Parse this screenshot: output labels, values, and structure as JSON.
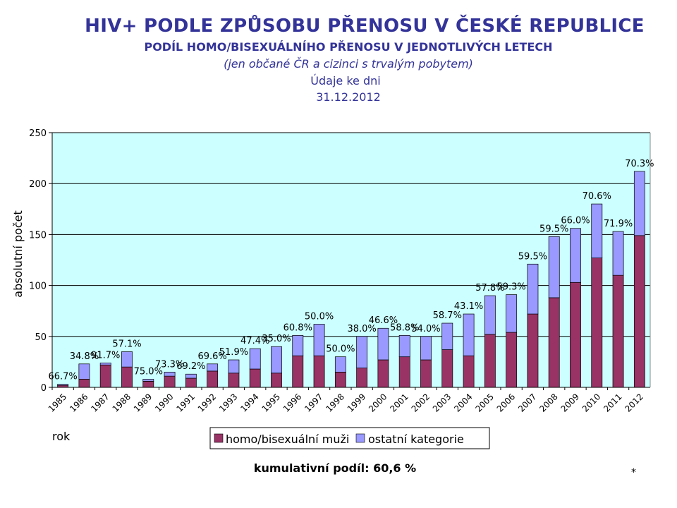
{
  "header": {
    "title": "HIV+ PODLE ZPŮSOBU PŘENOSU V ČESKÉ REPUBLICE",
    "subtitle": "PODÍL HOMO/BISEXUÁLNÍHO PŘENOSU V JEDNOTLIVÝCH LETECH",
    "note": "(jen občané ČR a cizinci s trvalým pobytem)",
    "date_label": "Údaje ke dni",
    "date": "31.12.2012"
  },
  "chart_data": {
    "type": "bar",
    "stacked": true,
    "categories": [
      "1985",
      "1986",
      "1987",
      "1988",
      "1989",
      "1990",
      "1991",
      "1992",
      "1993",
      "1994",
      "1995",
      "1996",
      "1997",
      "1998",
      "1999",
      "2000",
      "2001",
      "2002",
      "2003",
      "2004",
      "2005",
      "2006",
      "2007",
      "2008",
      "2009",
      "2010",
      "2011",
      "2012"
    ],
    "series": [
      {
        "name": "homo/bisexuální muži",
        "color": "#993366",
        "values": [
          2,
          8,
          22,
          20,
          6,
          11,
          9,
          16,
          14,
          18,
          14,
          31,
          31,
          15,
          19,
          27,
          30,
          27,
          37,
          31,
          52,
          54,
          72,
          88,
          103,
          127,
          110,
          149
        ]
      },
      {
        "name": "ostatní kategorie",
        "color": "#9999ff",
        "values": [
          1,
          15,
          2,
          15,
          2,
          4,
          4,
          7,
          13,
          20,
          26,
          20,
          31,
          15,
          31,
          31,
          21,
          23,
          26,
          41,
          38,
          37,
          49,
          60,
          53,
          53,
          43,
          63
        ]
      }
    ],
    "data_labels": [
      "66.7%",
      "34.8%",
      "91.7%",
      "57.1%",
      "75.0%",
      "73.3%",
      "69.2%",
      "69.6%",
      "51.9%",
      "47.4%",
      "35.0%",
      "60.8%",
      "50.0%",
      "50.0%",
      "38.0%",
      "46.6%",
      "58.8%",
      "54.0%",
      "58.7%",
      "43.1%",
      "57.8%",
      "59.3%",
      "59.5%",
      "59.5%",
      "66.0%",
      "70.6%",
      "71.9%",
      "70.3%"
    ],
    "xlabel": "rok",
    "ylabel": "absolutní počet",
    "ylim": [
      0,
      250
    ],
    "yticks": [
      0,
      50,
      100,
      150,
      200,
      250
    ],
    "grid": true,
    "plot_background": "#ccffff",
    "legend_position": "bottom"
  },
  "footer": {
    "cumulative": "kumulativní podíl: 60,6 %",
    "mark": "*"
  }
}
